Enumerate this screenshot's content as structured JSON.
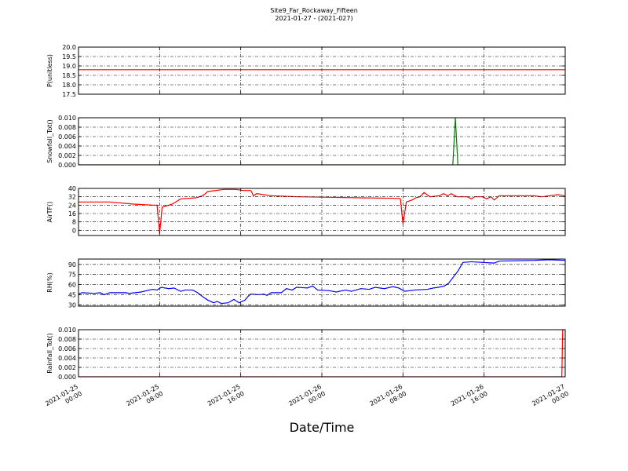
{
  "figure": {
    "title": "Site9_Far_Rockaway_Fifteen",
    "subtitle": "2021-01-27 - (2021-027)",
    "xlabel": "Date/Time",
    "xlim": [
      "2021-01-25 00:00",
      "2021-01-27 00:00"
    ],
    "xticks": [
      "2021-01-25 00:00",
      "2021-01-25 08:00",
      "2021-01-25 16:00",
      "2021-01-26 00:00",
      "2021-01-26 08:00",
      "2021-01-26 16:00",
      "2021-01-27 00:00"
    ]
  },
  "chart_data": [
    {
      "type": "line",
      "ylabel": "P(unitless)",
      "color": "#ff0000",
      "grid": true,
      "ylim": [
        17.5,
        20.0
      ],
      "yticks": [
        17.5,
        {
          "value": 18,
          "label": "18.0"
        },
        18.5,
        {
          "value": 19,
          "label": "19.0"
        },
        19.5,
        {
          "value": 20,
          "label": "20.0"
        }
      ],
      "x": [
        "2021-01-25 00:00",
        "2021-01-27 00:00"
      ],
      "values": [
        18.8,
        18.8
      ]
    },
    {
      "type": "line",
      "ylabel": "Snowfall_Tot()",
      "color": "#008000",
      "grid": true,
      "ylim": [
        0,
        0.01
      ],
      "yticks": [
        {
          "value": 0,
          "label": "0.000"
        },
        0.002,
        0.004,
        0.006,
        0.008,
        {
          "value": 0.01,
          "label": "0.010"
        }
      ],
      "x": [
        "2021-01-25 00:00",
        "2021-01-26 12:55",
        "2021-01-26 13:10",
        "2021-01-26 13:25",
        "2021-01-27 00:00"
      ],
      "values": [
        0,
        0,
        0.01,
        0,
        0
      ]
    },
    {
      "type": "line",
      "ylabel": "AirTF()",
      "color": "#ff0000",
      "grid": true,
      "ylim": [
        -5,
        40
      ],
      "yticks": [
        0,
        8,
        16,
        24,
        32,
        40
      ],
      "x": [
        "2021-01-25 00:00",
        "2021-01-25 03:05",
        "2021-01-25 05:25",
        "2021-01-25 07:20",
        "2021-01-25 07:45",
        "2021-01-25 08:00",
        "2021-01-25 08:15",
        "2021-01-25 09:15",
        "2021-01-25 10:05",
        "2021-01-25 11:35",
        "2021-01-25 12:15",
        "2021-01-25 12:45",
        "2021-01-25 14:20",
        "2021-01-25 15:30",
        "2021-01-25 16:15",
        "2021-01-25 17:00",
        "2021-01-25 17:15",
        "2021-01-25 17:35",
        "2021-01-25 19:00",
        "2021-01-25 21:40",
        "2021-01-26 00:45",
        "2021-01-26 03:50",
        "2021-01-26 07:35",
        "2021-01-26 07:45",
        "2021-01-26 08:00",
        "2021-01-26 08:20",
        "2021-01-26 08:55",
        "2021-01-26 09:15",
        "2021-01-26 09:40",
        "2021-01-26 10:05",
        "2021-01-26 10:40",
        "2021-01-26 11:35",
        "2021-01-26 12:00",
        "2021-01-26 12:25",
        "2021-01-26 12:45",
        "2021-01-26 13:20",
        "2021-01-26 14:20",
        "2021-01-26 14:45",
        "2021-01-26 15:05",
        "2021-01-26 15:50",
        "2021-01-26 16:15",
        "2021-01-26 16:40",
        "2021-01-26 17:00",
        "2021-01-26 17:30",
        "2021-01-26 20:55",
        "2021-01-26 21:40",
        "2021-01-26 23:15",
        "2021-01-27 00:00"
      ],
      "values": [
        27,
        27,
        25,
        24,
        24,
        -3,
        22,
        25,
        30,
        31,
        33,
        37,
        39,
        39,
        38,
        38,
        33,
        35,
        33,
        32,
        31.5,
        31,
        30.5,
        30,
        6,
        27,
        29,
        31,
        32,
        36,
        32,
        33,
        35,
        33,
        35,
        32,
        32,
        30,
        32,
        32,
        30,
        32,
        29,
        33,
        33,
        32,
        34,
        33
      ]
    },
    {
      "type": "line",
      "ylabel": "RH(%)",
      "color": "#0000ff",
      "grid": true,
      "ylim": [
        28,
        98
      ],
      "yticks": [
        30,
        45,
        60,
        75,
        90
      ],
      "x": [
        "2021-01-25 00:00",
        "2021-01-25 00:20",
        "2021-01-25 01:35",
        "2021-01-25 02:10",
        "2021-01-25 02:30",
        "2021-01-25 03:05",
        "2021-01-25 04:40",
        "2021-01-25 05:00",
        "2021-01-25 06:10",
        "2021-01-25 07:00",
        "2021-01-25 07:20",
        "2021-01-25 07:45",
        "2021-01-25 08:10",
        "2021-01-25 08:55",
        "2021-01-25 09:25",
        "2021-01-25 10:05",
        "2021-01-25 10:30",
        "2021-01-25 11:15",
        "2021-01-25 11:45",
        "2021-01-25 12:15",
        "2021-01-25 12:45",
        "2021-01-25 13:20",
        "2021-01-25 13:40",
        "2021-01-25 14:05",
        "2021-01-25 14:45",
        "2021-01-25 15:20",
        "2021-01-25 15:50",
        "2021-01-25 16:25",
        "2021-01-25 16:45",
        "2021-01-25 17:00",
        "2021-01-25 17:50",
        "2021-01-25 18:15",
        "2021-01-25 18:35",
        "2021-01-25 19:00",
        "2021-01-25 20:00",
        "2021-01-25 20:30",
        "2021-01-25 21:05",
        "2021-01-25 21:30",
        "2021-01-25 22:35",
        "2021-01-25 23:05",
        "2021-01-25 23:35",
        "2021-01-26 00:45",
        "2021-01-26 01:25",
        "2021-01-26 02:20",
        "2021-01-26 02:55",
        "2021-01-26 03:50",
        "2021-01-26 04:40",
        "2021-01-26 05:15",
        "2021-01-26 06:10",
        "2021-01-26 07:00",
        "2021-01-26 07:35",
        "2021-01-26 08:10",
        "2021-01-26 09:10",
        "2021-01-26 10:25",
        "2021-01-26 11:00",
        "2021-01-26 11:30",
        "2021-01-26 12:05",
        "2021-01-26 12:30",
        "2021-01-26 13:25",
        "2021-01-26 13:55",
        "2021-01-26 14:45",
        "2021-01-26 15:50",
        "2021-01-26 17:00",
        "2021-01-26 17:30",
        "2021-01-26 20:55",
        "2021-01-26 22:25",
        "2021-01-27 00:00"
      ],
      "values": [
        46,
        48,
        47,
        48,
        45,
        48,
        48,
        47,
        49,
        52,
        53,
        52,
        56,
        54,
        55,
        50,
        52,
        52,
        48,
        42,
        37,
        33,
        35,
        32,
        33,
        38,
        33,
        37,
        43,
        46,
        45,
        46,
        44,
        48,
        48,
        54,
        52,
        56,
        55,
        58,
        52,
        51,
        49,
        52,
        50,
        54,
        53,
        56,
        54,
        57,
        55,
        50,
        52,
        53,
        55,
        56,
        58,
        62,
        80,
        93,
        94,
        93,
        92,
        95,
        96,
        97,
        96
      ]
    },
    {
      "type": "line",
      "ylabel": "Rainfall_Tot()",
      "color": "#ff0000",
      "grid": true,
      "ylim": [
        0,
        0.01
      ],
      "yticks": [
        {
          "value": 0,
          "label": "0.000"
        },
        0.002,
        0.004,
        0.006,
        0.008,
        {
          "value": 0.01,
          "label": "0.010"
        }
      ],
      "x": [
        "2021-01-25 00:00",
        "2021-01-26 23:40",
        "2021-01-26 23:45",
        "2021-01-27 00:00"
      ],
      "values": [
        0,
        0,
        0.01,
        0.01
      ]
    }
  ]
}
